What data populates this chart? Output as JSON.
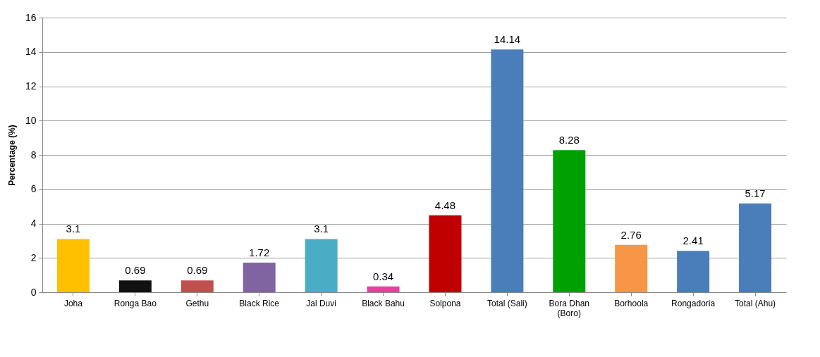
{
  "chart_data": {
    "type": "bar",
    "ylabel": "Percentage (%)",
    "categories": [
      "Joha",
      "Ronga Bao",
      "Gethu",
      "Black Rice",
      "Jal Duvi",
      "Black Bahu",
      "Solpona",
      "Total (Sali)",
      "Bora Dhan (Boro)",
      "Borhoola",
      "Rongadoria",
      "Total (Ahu)"
    ],
    "values": [
      3.1,
      0.69,
      0.69,
      1.72,
      3.1,
      0.34,
      4.48,
      14.14,
      8.28,
      2.76,
      2.41,
      5.17
    ],
    "colors": [
      "#ffc000",
      "#111111",
      "#c0504d",
      "#8064a2",
      "#4bacc6",
      "#e83e9f",
      "#c00000",
      "#4a7ebb",
      "#00a000",
      "#f79646",
      "#4a7ebb",
      "#4a7ebb"
    ],
    "ylim": [
      0,
      16
    ],
    "yticks": [
      0,
      2,
      4,
      6,
      8,
      10,
      12,
      14,
      16
    ],
    "grid": "y",
    "data_labels": true
  }
}
